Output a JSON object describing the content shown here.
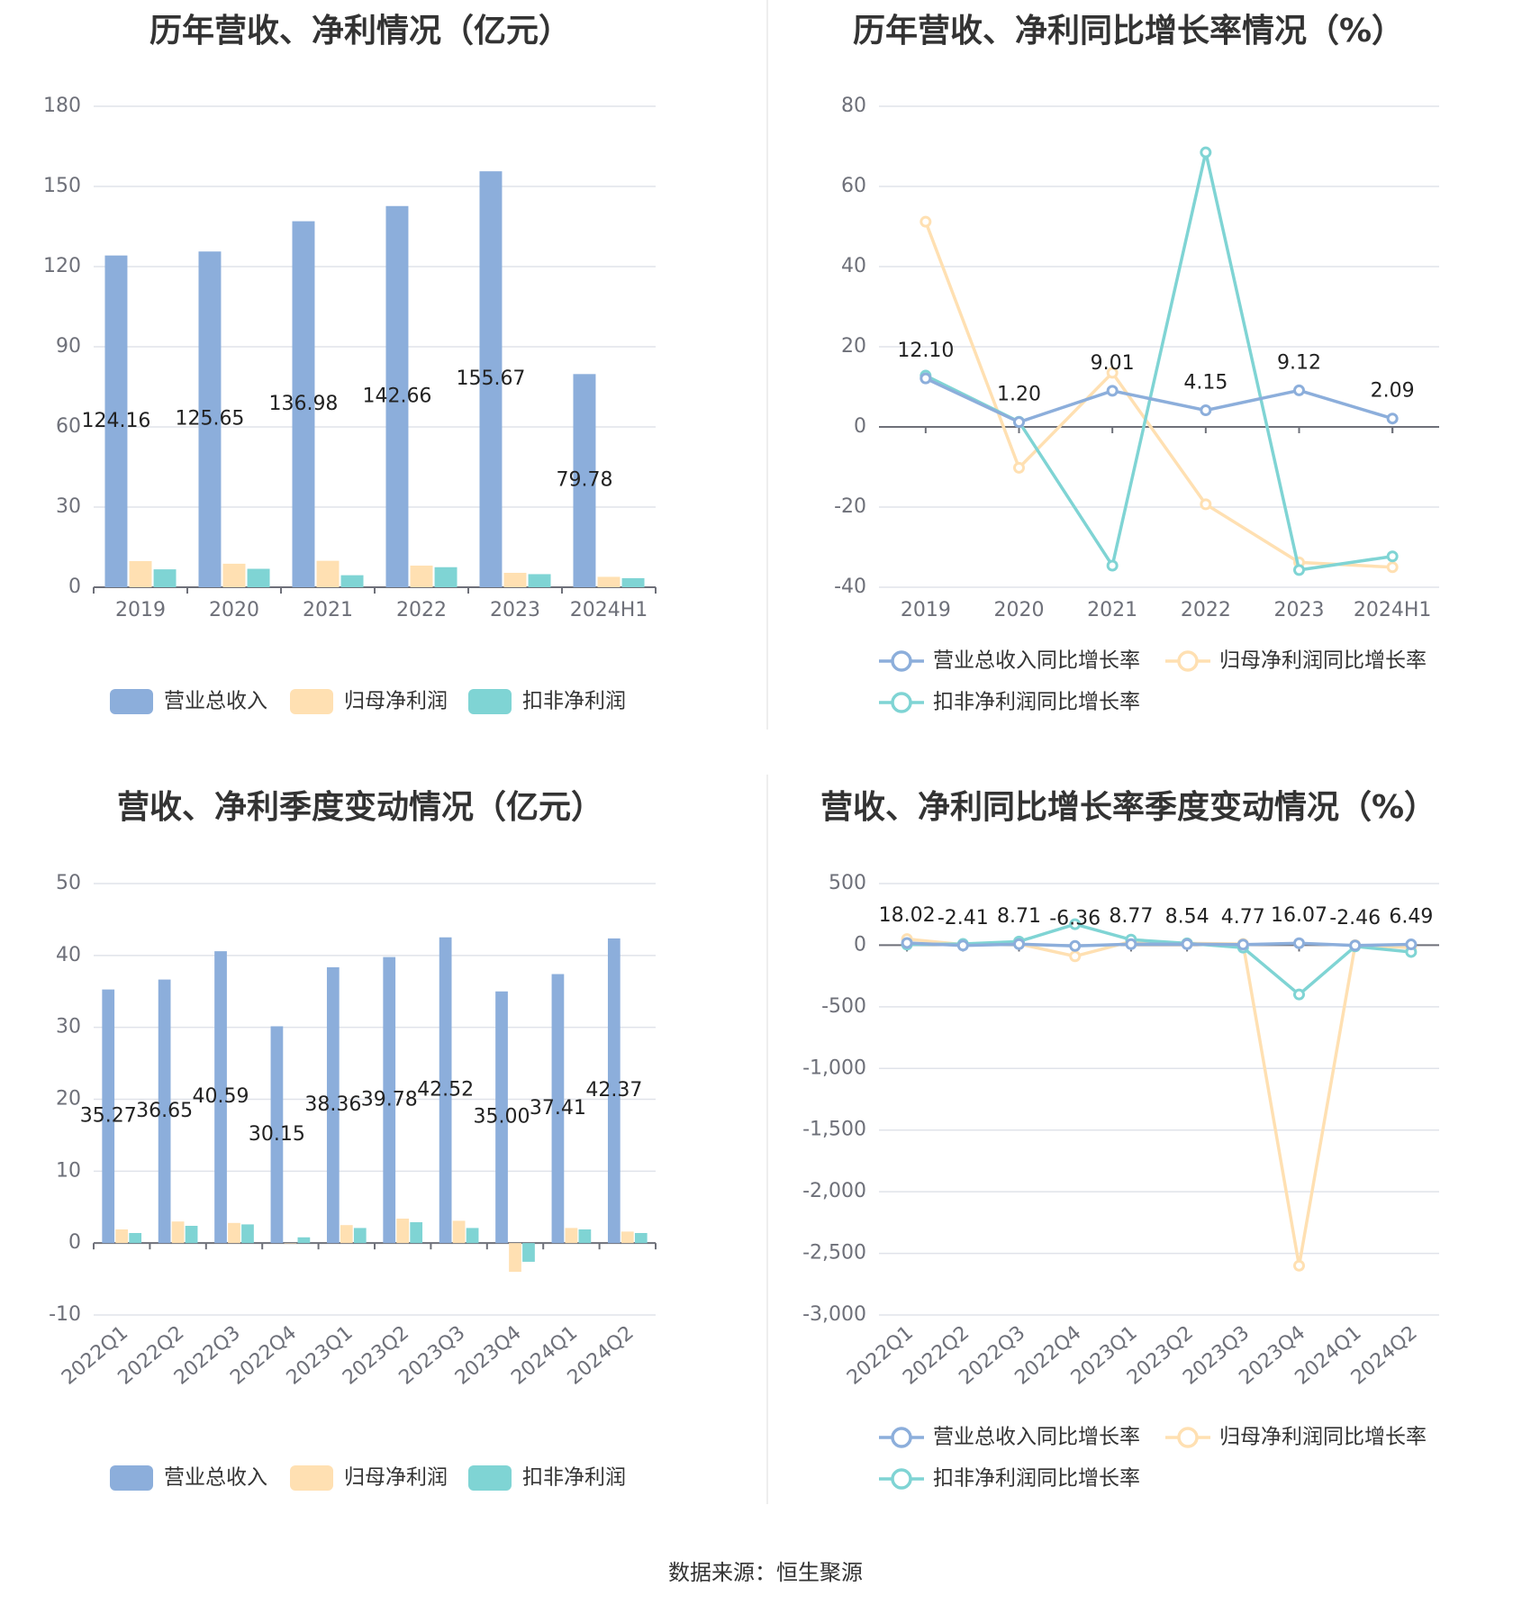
{
  "source": "数据来源：恒生聚源",
  "colors": {
    "revenue": "#8CAEDB",
    "net_profit": "#FFE0B2",
    "deducted": "#7FD4D4",
    "grid": "#e0e3ea",
    "axis": "#6e7079"
  },
  "chart_data": [
    {
      "type": "bar",
      "title": "历年营收、净利情况（亿元）",
      "categories": [
        "2019",
        "2020",
        "2021",
        "2022",
        "2023",
        "2024H1"
      ],
      "ylim": [
        0,
        180
      ],
      "yticks": [
        "0",
        "30",
        "60",
        "90",
        "120",
        "150",
        "180"
      ],
      "series": [
        {
          "name": "营业总收入",
          "values": [
            124.16,
            125.65,
            136.98,
            142.66,
            155.67,
            79.78
          ],
          "labels": [
            "124.16",
            "125.65",
            "136.98",
            "142.66",
            "155.67",
            "79.78"
          ]
        },
        {
          "name": "归母净利润",
          "values": [
            9.8,
            8.8,
            9.9,
            8.1,
            5.4,
            3.9
          ]
        },
        {
          "name": "扣非净利润",
          "values": [
            6.7,
            6.9,
            4.5,
            7.5,
            4.9,
            3.4
          ]
        }
      ],
      "legend": "bottom"
    },
    {
      "type": "line",
      "title": "历年营收、净利同比增长率情况（%）",
      "categories": [
        "2019",
        "2020",
        "2021",
        "2022",
        "2023",
        "2024H1"
      ],
      "ylim": [
        -40,
        80
      ],
      "yticks": [
        "-40",
        "-20",
        "0",
        "20",
        "40",
        "60",
        "80"
      ],
      "series": [
        {
          "name": "营业总收入同比增长率",
          "values": [
            12.1,
            1.2,
            9.01,
            4.15,
            9.12,
            2.09
          ],
          "labels": [
            "12.10",
            "1.20",
            "9.01",
            "4.15",
            "9.12",
            "2.09"
          ]
        },
        {
          "name": "归母净利润同比增长率",
          "values": [
            51.2,
            -10.2,
            13.5,
            -19.3,
            -33.8,
            -35.0
          ]
        },
        {
          "name": "扣非净利润同比增长率",
          "values": [
            12.8,
            1.3,
            -34.6,
            68.5,
            -35.7,
            -32.3
          ]
        }
      ],
      "legend": "bottom"
    },
    {
      "type": "bar",
      "title": "营收、净利季度变动情况（亿元）",
      "categories": [
        "2022Q1",
        "2022Q2",
        "2022Q3",
        "2022Q4",
        "2023Q1",
        "2023Q2",
        "2023Q3",
        "2023Q4",
        "2024Q1",
        "2024Q2"
      ],
      "ylim": [
        -10,
        50
      ],
      "yticks": [
        "-10",
        "0",
        "10",
        "20",
        "30",
        "40",
        "50"
      ],
      "series": [
        {
          "name": "营业总收入",
          "values": [
            35.27,
            36.65,
            40.59,
            30.15,
            38.36,
            39.78,
            42.52,
            35.0,
            37.41,
            42.37
          ],
          "labels": [
            "35.27",
            "36.65",
            "40.59",
            "30.15",
            "38.36",
            "39.78",
            "42.52",
            "35.00",
            "37.41",
            "42.37"
          ]
        },
        {
          "name": "归母净利润",
          "values": [
            1.9,
            3.0,
            2.8,
            0.0,
            2.5,
            3.4,
            3.1,
            -4.0,
            2.1,
            1.6
          ]
        },
        {
          "name": "扣非净利润",
          "values": [
            1.4,
            2.4,
            2.6,
            0.8,
            2.1,
            2.9,
            2.1,
            -2.6,
            1.9,
            1.4
          ]
        }
      ],
      "legend": "bottom"
    },
    {
      "type": "line",
      "title": "营收、净利同比增长率季度变动情况（%）",
      "categories": [
        "2022Q1",
        "2022Q2",
        "2022Q3",
        "2022Q4",
        "2023Q1",
        "2023Q2",
        "2023Q3",
        "2023Q4",
        "2024Q1",
        "2024Q2"
      ],
      "ylim": [
        -3000,
        500
      ],
      "yticks": [
        "-3,000",
        "-2,500",
        "-2,000",
        "-1,500",
        "-1,000",
        "-500",
        "0",
        "500"
      ],
      "series": [
        {
          "name": "营业总收入同比增长率",
          "values": [
            18.02,
            -2.41,
            8.71,
            -6.36,
            8.77,
            8.54,
            4.77,
            16.07,
            -2.46,
            6.49
          ],
          "labels": [
            "18.02",
            "-2.41",
            "8.71",
            "-6.36",
            "8.77",
            "8.54",
            "4.77",
            "16.07",
            "-2.46",
            "6.49"
          ]
        },
        {
          "name": "归母净利润同比增长率",
          "values": [
            50,
            5,
            10,
            -90,
            30,
            15,
            10,
            -2600,
            0,
            -20
          ]
        },
        {
          "name": "扣非净利润同比增长率",
          "values": [
            5,
            10,
            30,
            170,
            45,
            15,
            -20,
            -400,
            -10,
            -55
          ]
        }
      ],
      "legend": "bottom"
    }
  ]
}
